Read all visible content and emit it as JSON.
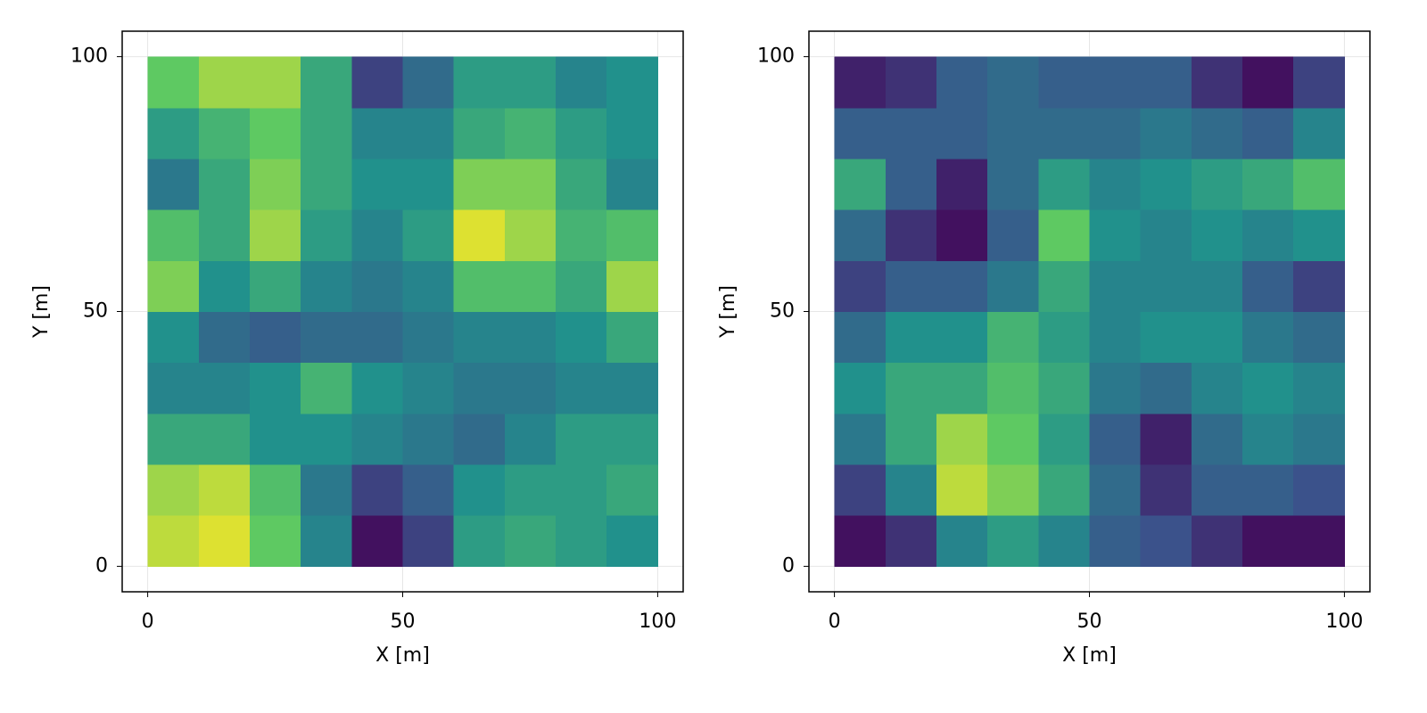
{
  "chart_data": [
    {
      "type": "heatmap",
      "xlabel": "X [m]",
      "ylabel": "Y [m]",
      "colormap": "viridis",
      "colorrange": [
        0,
        1
      ],
      "xlim": [
        -5,
        105
      ],
      "ylim": [
        -5,
        105
      ],
      "xticks": [
        0,
        50,
        100
      ],
      "yticks": [
        0,
        50,
        100
      ],
      "grid": true,
      "x": [
        5,
        15,
        25,
        35,
        45,
        55,
        65,
        75,
        85,
        95
      ],
      "y": [
        5,
        15,
        25,
        35,
        45,
        55,
        65,
        75,
        85,
        95
      ],
      "z": [
        [
          0.9,
          0.95,
          0.75,
          0.45,
          0.05,
          0.2,
          0.55,
          0.6,
          0.55,
          0.5
        ],
        [
          0.85,
          0.9,
          0.7,
          0.4,
          0.2,
          0.3,
          0.5,
          0.55,
          0.55,
          0.6
        ],
        [
          0.6,
          0.6,
          0.5,
          0.5,
          0.45,
          0.4,
          0.35,
          0.45,
          0.55,
          0.55
        ],
        [
          0.45,
          0.45,
          0.5,
          0.65,
          0.5,
          0.45,
          0.4,
          0.4,
          0.45,
          0.45
        ],
        [
          0.5,
          0.35,
          0.3,
          0.35,
          0.35,
          0.4,
          0.45,
          0.45,
          0.5,
          0.6
        ],
        [
          0.8,
          0.5,
          0.6,
          0.45,
          0.4,
          0.45,
          0.7,
          0.7,
          0.6,
          0.85
        ],
        [
          0.7,
          0.6,
          0.85,
          0.55,
          0.45,
          0.55,
          0.95,
          0.85,
          0.65,
          0.7
        ],
        [
          0.4,
          0.6,
          0.8,
          0.6,
          0.5,
          0.5,
          0.8,
          0.8,
          0.6,
          0.45
        ],
        [
          0.55,
          0.65,
          0.75,
          0.6,
          0.45,
          0.45,
          0.6,
          0.65,
          0.55,
          0.5
        ],
        [
          0.75,
          0.85,
          0.85,
          0.6,
          0.2,
          0.35,
          0.55,
          0.55,
          0.45,
          0.5
        ]
      ]
    },
    {
      "type": "heatmap",
      "xlabel": "X [m]",
      "ylabel": "Y [m]",
      "colormap": "viridis",
      "colorrange": [
        0,
        1
      ],
      "xlim": [
        -5,
        105
      ],
      "ylim": [
        -5,
        105
      ],
      "xticks": [
        0,
        50,
        100
      ],
      "yticks": [
        0,
        50,
        100
      ],
      "grid": true,
      "x": [
        5,
        15,
        25,
        35,
        45,
        55,
        65,
        75,
        85,
        95
      ],
      "y": [
        5,
        15,
        25,
        35,
        45,
        55,
        65,
        75,
        85,
        95
      ],
      "z": [
        [
          0.05,
          0.15,
          0.45,
          0.55,
          0.45,
          0.3,
          0.25,
          0.15,
          0.05,
          0.05
        ],
        [
          0.2,
          0.45,
          0.9,
          0.8,
          0.6,
          0.35,
          0.15,
          0.3,
          0.3,
          0.25
        ],
        [
          0.4,
          0.6,
          0.85,
          0.75,
          0.55,
          0.3,
          0.1,
          0.35,
          0.45,
          0.4
        ],
        [
          0.5,
          0.6,
          0.6,
          0.7,
          0.6,
          0.4,
          0.35,
          0.45,
          0.5,
          0.45
        ],
        [
          0.35,
          0.5,
          0.5,
          0.65,
          0.55,
          0.45,
          0.5,
          0.5,
          0.4,
          0.35
        ],
        [
          0.2,
          0.3,
          0.3,
          0.4,
          0.6,
          0.45,
          0.45,
          0.45,
          0.3,
          0.2
        ],
        [
          0.35,
          0.15,
          0.05,
          0.3,
          0.75,
          0.5,
          0.45,
          0.5,
          0.45,
          0.5
        ],
        [
          0.6,
          0.3,
          0.1,
          0.35,
          0.55,
          0.45,
          0.5,
          0.55,
          0.6,
          0.7
        ],
        [
          0.3,
          0.3,
          0.3,
          0.35,
          0.35,
          0.35,
          0.4,
          0.35,
          0.3,
          0.45
        ],
        [
          0.1,
          0.15,
          0.3,
          0.35,
          0.3,
          0.3,
          0.3,
          0.15,
          0.05,
          0.2
        ]
      ]
    }
  ]
}
